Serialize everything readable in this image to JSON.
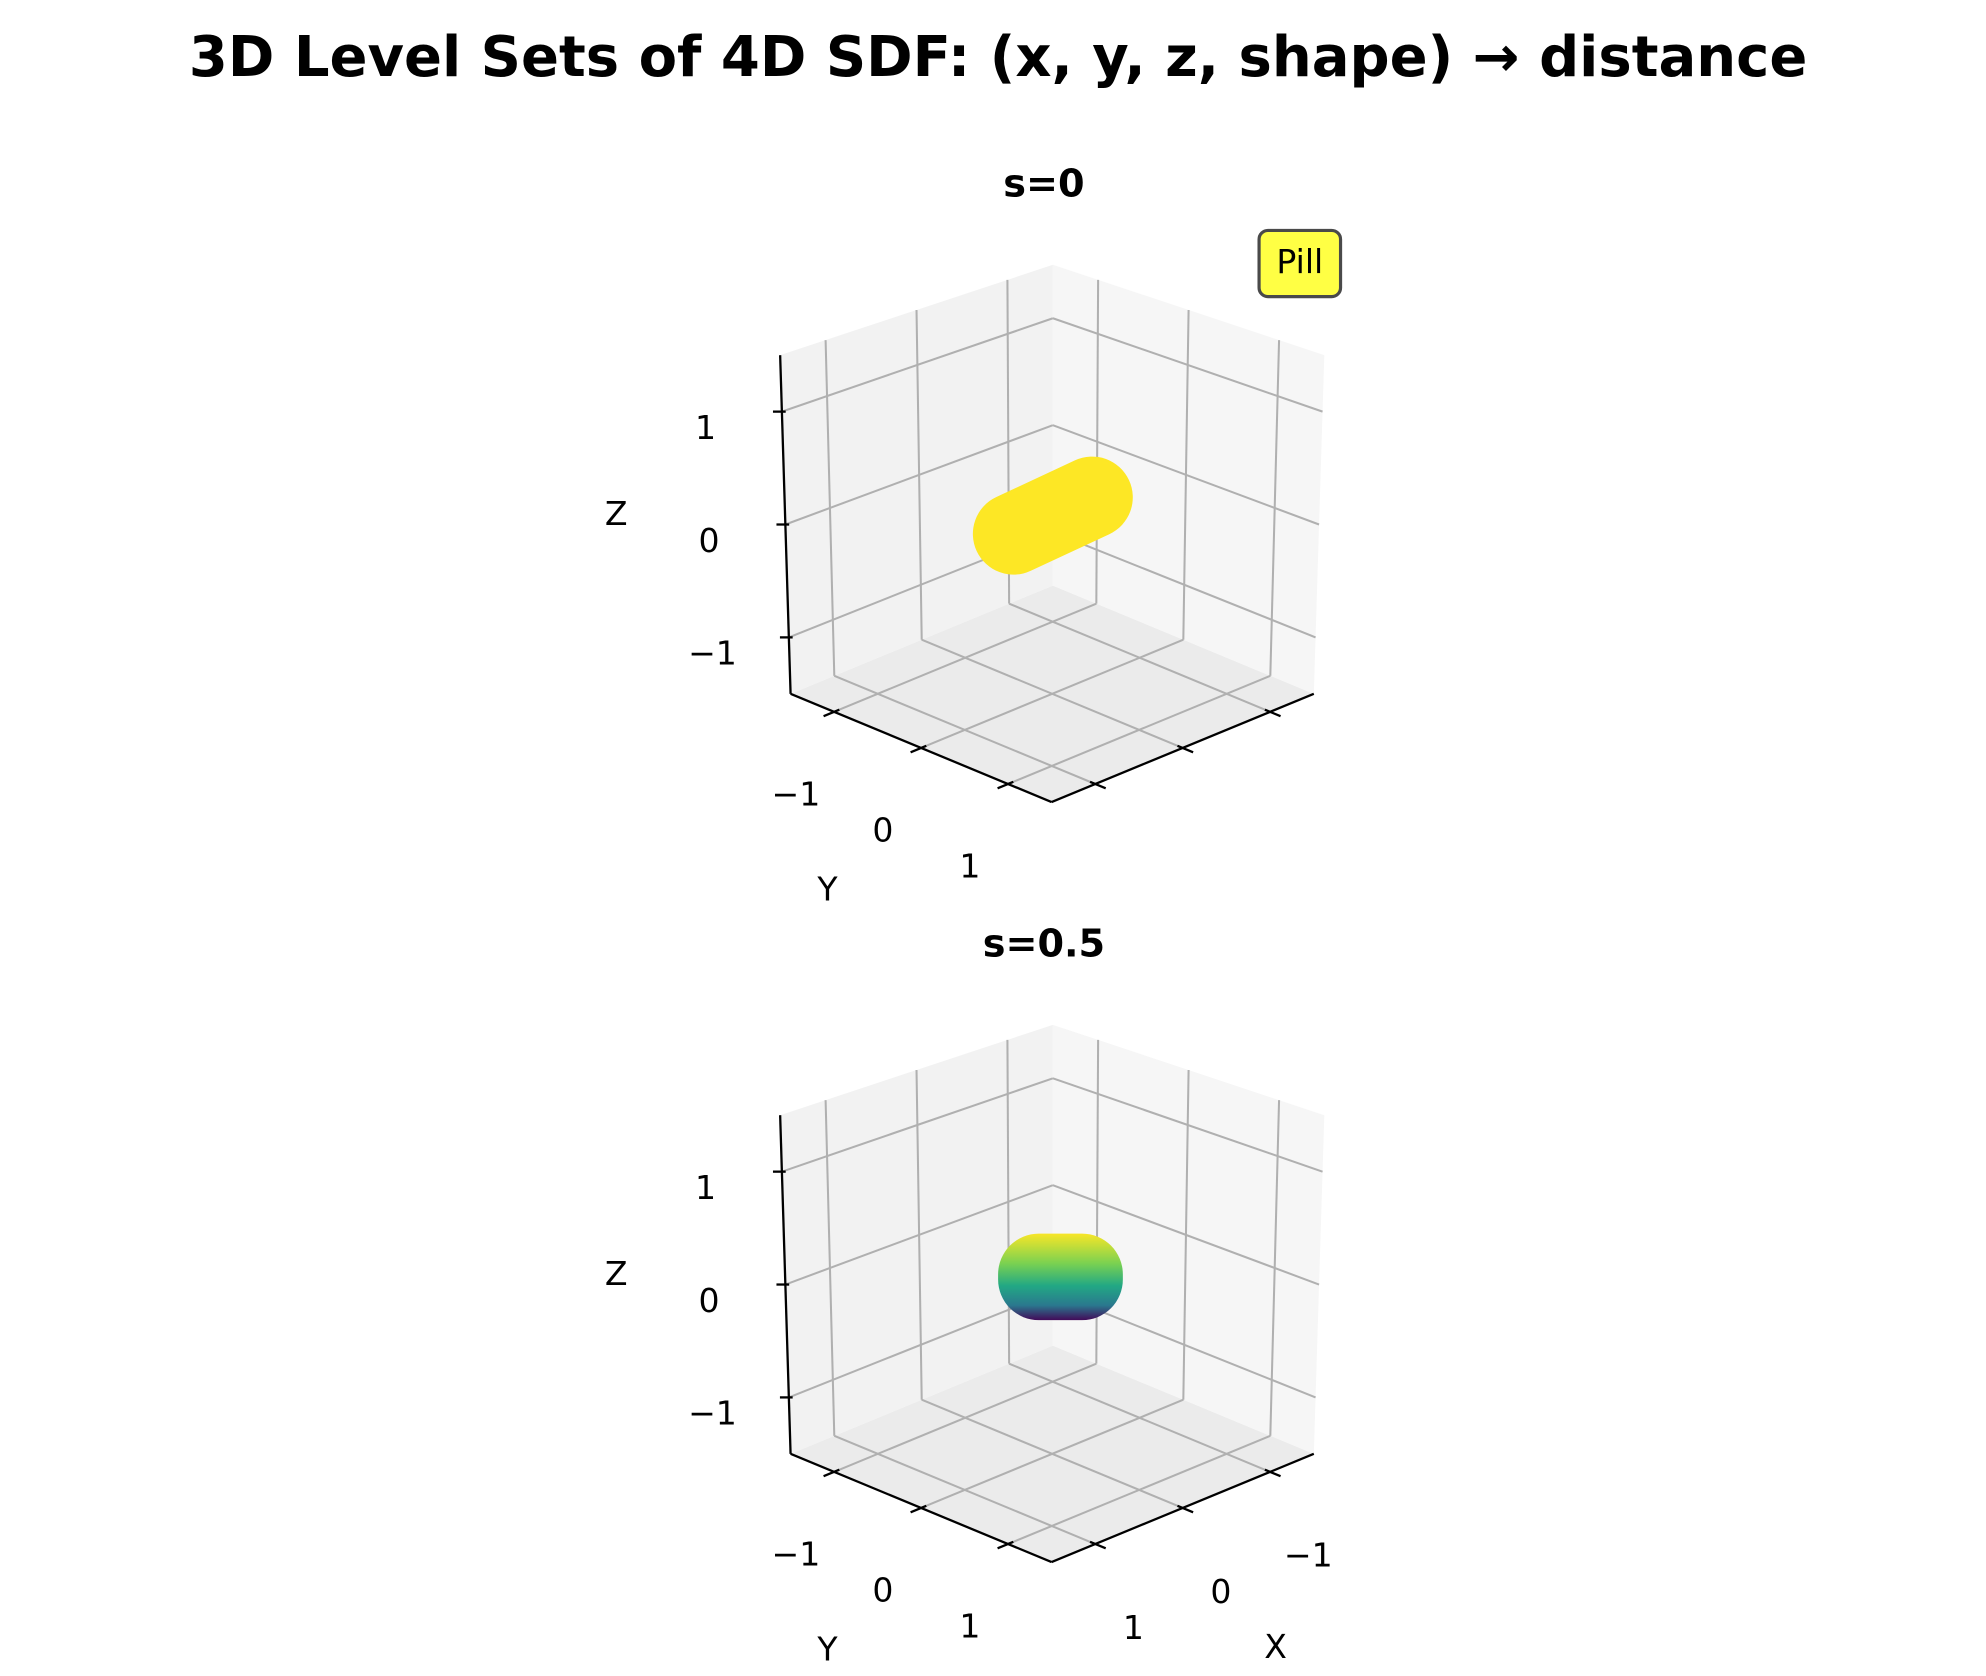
{
  "title": "3D Level Sets of 4D SDF: (x, y, z, shape) → distance",
  "chart_data": [
    {
      "type": "isosurface3d",
      "title": "s=0",
      "annotation": "Pill",
      "ylabel": "Y",
      "zlabel": "Z",
      "xlim": [
        -1.5,
        1.5
      ],
      "ylim": [
        -1.5,
        1.5
      ],
      "zlim": [
        -1.5,
        1.5
      ],
      "xticks": [
        -1,
        0,
        1
      ],
      "xtick_labels": false,
      "yticks": [
        {
          "value": -1,
          "label": "−1"
        },
        0,
        1
      ],
      "zticks": [
        {
          "value": -1,
          "label": "−1"
        },
        0,
        1
      ],
      "grid": true
    },
    {
      "type": "isosurface3d",
      "title": "s=0.5",
      "xlabel": "X",
      "ylabel": "Y",
      "zlabel": "Z",
      "xlim": [
        -1.5,
        1.5
      ],
      "ylim": [
        -1.5,
        1.5
      ],
      "zlim": [
        -1.5,
        1.5
      ],
      "xticks": [
        {
          "value": -1,
          "label": "−1"
        },
        0,
        1
      ],
      "xtick_labels": true,
      "yticks": [
        {
          "value": -1,
          "label": "−1"
        },
        0,
        1
      ],
      "zticks": [
        {
          "value": -1,
          "label": "−1"
        },
        0,
        1
      ],
      "grid": true
    }
  ]
}
